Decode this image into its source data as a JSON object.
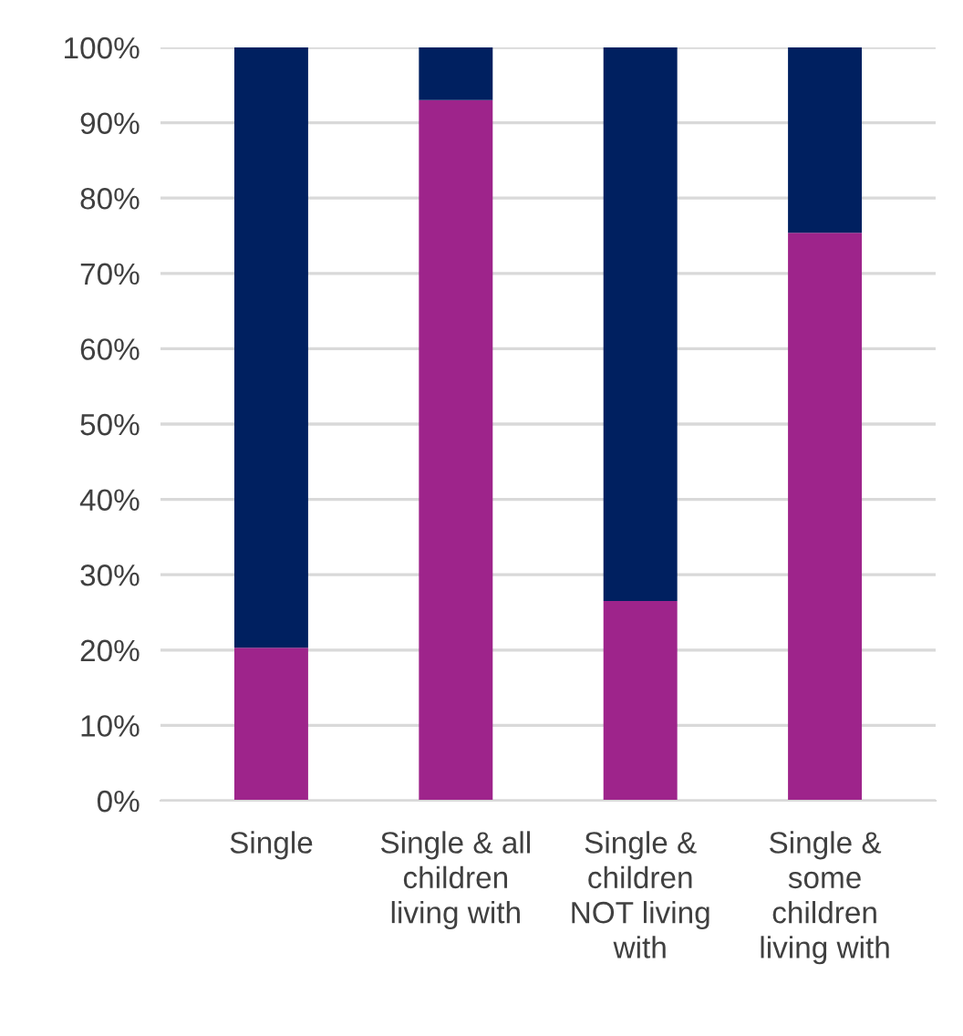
{
  "chart_data": {
    "type": "bar",
    "stacked": true,
    "categories": [
      "Single",
      "Single & all\nchildren\nliving with",
      "Single &\nchildren\nNOT living\nwith",
      "Single &\nsome\nchildren\nliving with"
    ],
    "series": [
      {
        "color": "#9e248b",
        "values": [
          20.3,
          93,
          26.5,
          75.4
        ]
      },
      {
        "color": "#002060",
        "values": [
          79.7,
          7,
          73.5,
          24.6
        ]
      }
    ],
    "ylim": [
      0,
      100
    ],
    "yticks": [
      {
        "value": 0,
        "label": "0%"
      },
      {
        "value": 10,
        "label": "10%"
      },
      {
        "value": 20,
        "label": "20%"
      },
      {
        "value": 30,
        "label": "30%"
      },
      {
        "value": 40,
        "label": "40%"
      },
      {
        "value": 50,
        "label": "50%"
      },
      {
        "value": 60,
        "label": "60%"
      },
      {
        "value": 70,
        "label": "70%"
      },
      {
        "value": 80,
        "label": "80%"
      },
      {
        "value": 90,
        "label": "90%"
      },
      {
        "value": 100,
        "label": "100%"
      }
    ],
    "grid": "y"
  }
}
